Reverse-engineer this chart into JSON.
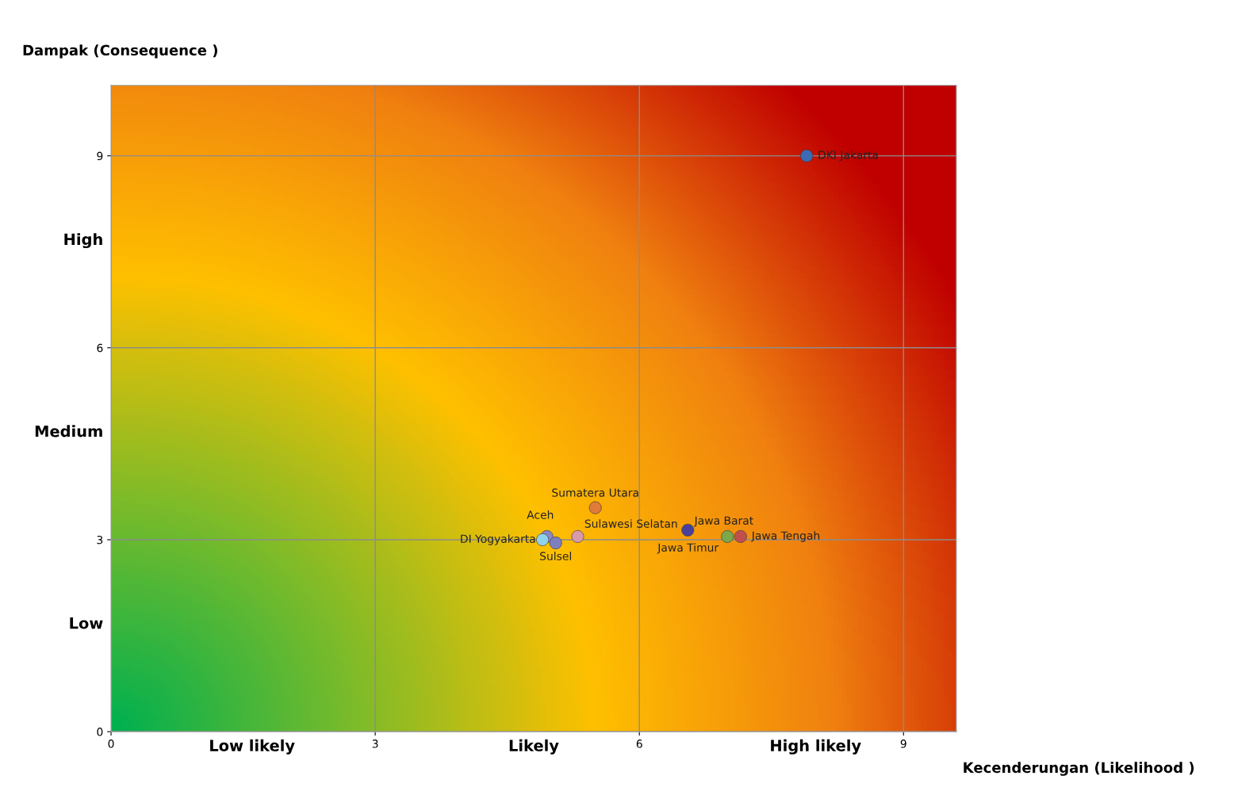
{
  "chart_data": {
    "type": "scatter",
    "xlabel": "Kecenderungan (Likelihood )",
    "ylabel": "Dampak (Consequence )",
    "xlim": [
      0,
      9.6
    ],
    "ylim": [
      0,
      10.1
    ],
    "xticks": [
      0,
      {
        "value": 1.6,
        "label": "Low likely"
      },
      3,
      {
        "value": 4.8,
        "label": "Likely"
      },
      6,
      {
        "value": 8.0,
        "label": "High likely"
      },
      9
    ],
    "yticks": [
      0,
      {
        "value": 1.7,
        "label": "Low"
      },
      3,
      {
        "value": 4.7,
        "label": "Medium"
      },
      6,
      {
        "value": 7.7,
        "label": "High"
      },
      9
    ],
    "grid": true,
    "marker": "circle",
    "legend": false,
    "series": [
      {
        "name": "DKI Jakarta",
        "color": "#3a6bb5",
        "x": [
          7.9
        ],
        "values": [
          9.0
        ]
      },
      {
        "name": "Sumatera Utara",
        "color": "#e07b39",
        "x": [
          5.5
        ],
        "values": [
          3.5
        ]
      },
      {
        "name": "Aceh",
        "color": "#8b86c8",
        "x": [
          4.95
        ],
        "values": [
          3.05
        ]
      },
      {
        "name": "Sulsel",
        "color": "#7f7fc0",
        "x": [
          5.05
        ],
        "values": [
          2.95
        ]
      },
      {
        "name": "DI Yogyakarta",
        "color": "#8fd3ea",
        "x": [
          4.9
        ],
        "values": [
          3.0
        ]
      },
      {
        "name": "Sulawesi Selatan",
        "color": "#d99aa8",
        "x": [
          5.3
        ],
        "values": [
          3.05
        ]
      },
      {
        "name": "Jawa Barat",
        "color": "#4a3f9a",
        "x": [
          6.55
        ],
        "values": [
          3.15
        ]
      },
      {
        "name": "Jawa Timur",
        "color": "#7aa84a",
        "x": [
          7.0
        ],
        "values": [
          3.05
        ]
      },
      {
        "name": "Jawa Tengah",
        "color": "#c0504d",
        "x": [
          7.15
        ],
        "values": [
          3.05
        ]
      }
    ]
  }
}
